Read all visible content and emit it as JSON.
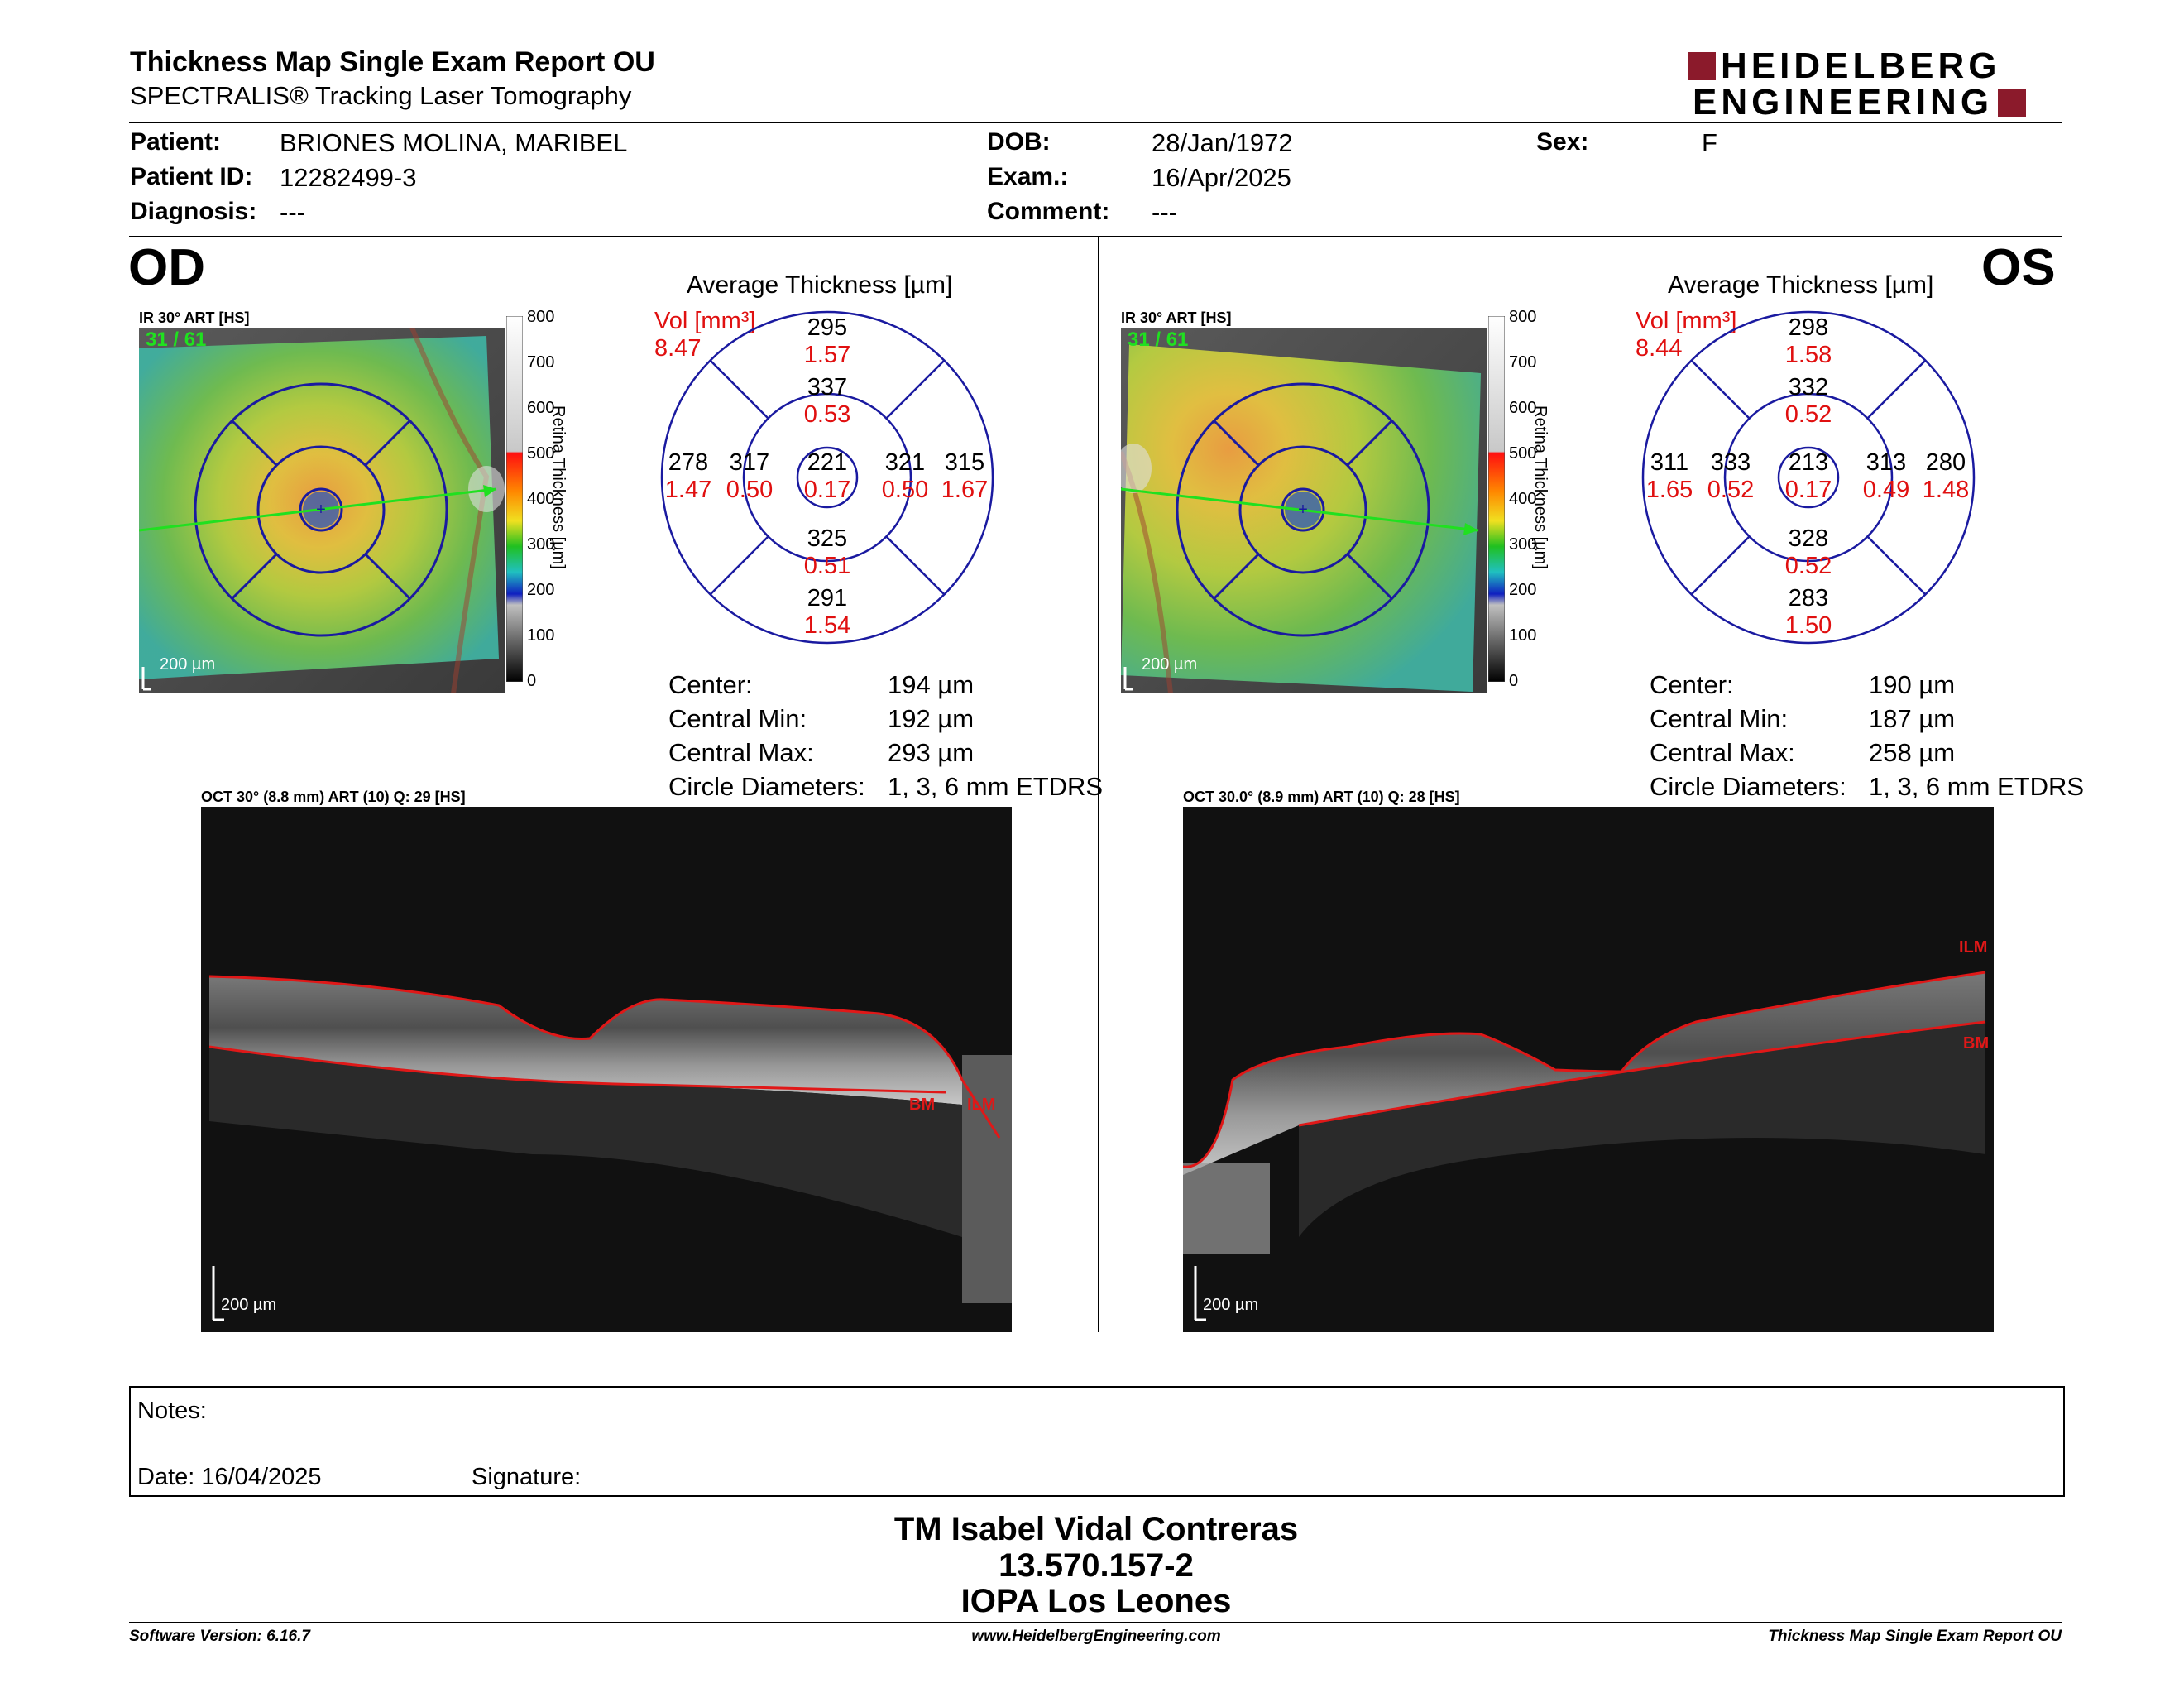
{
  "report": {
    "title": "Thickness Map Single Exam Report OU",
    "subtitle": "SPECTRALIS® Tracking Laser Tomography",
    "logo_line1": "HEIDELBERG",
    "logo_line2": "ENGINEERING"
  },
  "patient": {
    "patient_label": "Patient:",
    "patient_name": "BRIONES MOLINA, MARIBEL",
    "id_label": "Patient ID:",
    "id": "12282499-3",
    "diagnosis_label": "Diagnosis:",
    "diagnosis": "---",
    "dob_label": "DOB:",
    "dob": "28/Jan/1972",
    "exam_label": "Exam.:",
    "exam": "16/Apr/2025",
    "comment_label": "Comment:",
    "comment": "---",
    "sex_label": "Sex:",
    "sex": "F"
  },
  "od": {
    "eye": "OD",
    "ir_caption": "IR 30° ART [HS]",
    "frame": "31 / 61",
    "ir_scale": "200 µm",
    "avg_title": "Average Thickness [µm]",
    "vol_label": "Vol [mm³]",
    "vol_total": "8.47",
    "sectors": {
      "center": {
        "t": "221",
        "v": "0.17"
      },
      "inner_sup": {
        "t": "337",
        "v": "0.53"
      },
      "inner_inf": {
        "t": "325",
        "v": "0.51"
      },
      "inner_left": {
        "t": "317",
        "v": "0.50"
      },
      "inner_right": {
        "t": "321",
        "v": "0.50"
      },
      "outer_sup": {
        "t": "295",
        "v": "1.57"
      },
      "outer_inf": {
        "t": "291",
        "v": "1.54"
      },
      "outer_left": {
        "t": "278",
        "v": "1.47"
      },
      "outer_right": {
        "t": "315",
        "v": "1.67"
      }
    },
    "center_label": "Center:",
    "center_val": "194 µm",
    "cmin_label": "Central Min:",
    "cmin_val": "192 µm",
    "cmax_label": "Central Max:",
    "cmax_val": "293 µm",
    "diam_label": "Circle Diameters:",
    "diam_val": "1, 3, 6 mm ETDRS",
    "oct_caption": "OCT 30° (8.8 mm) ART (10) Q: 29 [HS]",
    "oct_scale": "200 µm",
    "bm_label": "BM",
    "ilm_label": "ILM"
  },
  "os": {
    "eye": "OS",
    "ir_caption": "IR 30° ART [HS]",
    "frame": "31 / 61",
    "ir_scale": "200 µm",
    "avg_title": "Average Thickness [µm]",
    "vol_label": "Vol [mm³]",
    "vol_total": "8.44",
    "sectors": {
      "center": {
        "t": "213",
        "v": "0.17"
      },
      "inner_sup": {
        "t": "332",
        "v": "0.52"
      },
      "inner_inf": {
        "t": "328",
        "v": "0.52"
      },
      "inner_left": {
        "t": "333",
        "v": "0.52"
      },
      "inner_right": {
        "t": "313",
        "v": "0.49"
      },
      "outer_sup": {
        "t": "298",
        "v": "1.58"
      },
      "outer_inf": {
        "t": "283",
        "v": "1.50"
      },
      "outer_left": {
        "t": "311",
        "v": "1.65"
      },
      "outer_right": {
        "t": "280",
        "v": "1.48"
      }
    },
    "center_label": "Center:",
    "center_val": "190 µm",
    "cmin_label": "Central Min:",
    "cmin_val": "187 µm",
    "cmax_label": "Central Max:",
    "cmax_val": "258 µm",
    "diam_label": "Circle Diameters:",
    "diam_val": "1, 3, 6 mm ETDRS",
    "oct_caption": "OCT 30.0° (8.9 mm) ART (10) Q: 28 [HS]",
    "oct_scale": "200 µm",
    "bm_label": "BM",
    "ilm_label": "ILM"
  },
  "colorbar": {
    "ticks": [
      "800",
      "700",
      "600",
      "500",
      "400",
      "300",
      "200",
      "100",
      "0"
    ],
    "axis_label": "Retina Thickness [µm]"
  },
  "notes": {
    "notes_label": "Notes:",
    "date_label": "Date: 16/04/2025",
    "signature_label": "Signature:"
  },
  "signatory": {
    "name": "TM Isabel Vidal Contreras",
    "id": "13.570.157-2",
    "institution": "IOPA Los Leones"
  },
  "footer": {
    "version": "Software Version: 6.16.7",
    "website": "www.HeidelbergEngineering.com",
    "report_name": "Thickness Map Single Exam Report OU"
  },
  "colors": {
    "vol_red": "#e01010",
    "ring_blue": "#1a1aa0",
    "logo_red": "#8b1a2b",
    "layer_red": "#e01818"
  }
}
